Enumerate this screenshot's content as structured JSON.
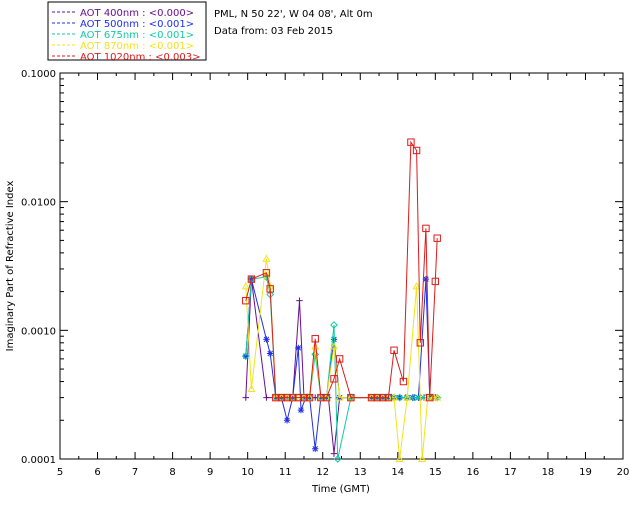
{
  "info": {
    "station": "PML, N 50 22', W 04 08', Alt 0m",
    "data_from": "Data from: 03 Feb 2015"
  },
  "chart_data": {
    "type": "line",
    "xlabel": "Time (GMT)",
    "ylabel": "Imaginary Part of Refractive Index",
    "xlim": [
      5,
      20
    ],
    "ylim": [
      0.0001,
      0.1
    ],
    "yscale": "log",
    "xticks": [
      5,
      6,
      7,
      8,
      9,
      10,
      11,
      12,
      13,
      14,
      15,
      16,
      17,
      18,
      19,
      20
    ],
    "yticks": [
      {
        "value": 0.0001,
        "label": "0.0001"
      },
      {
        "value": 0.001,
        "label": "0.0010"
      },
      {
        "value": 0.01,
        "label": "0.0100"
      },
      {
        "value": 0.1,
        "label": "0.1000"
      }
    ],
    "legend_position": "top-left",
    "series": [
      {
        "name": "AOT  400nm : <0.000>",
        "color": "#6a0f8e",
        "marker": "plus",
        "points": [
          [
            9.95,
            0.0003
          ],
          [
            10.1,
            0.0025
          ],
          [
            10.5,
            0.0003
          ],
          [
            10.75,
            0.0003
          ],
          [
            10.9,
            0.0003
          ],
          [
            11.05,
            0.0003
          ],
          [
            11.2,
            0.0003
          ],
          [
            11.38,
            0.0017
          ],
          [
            11.5,
            0.0003
          ],
          [
            11.65,
            0.0003
          ],
          [
            11.8,
            0.0003
          ],
          [
            12.0,
            0.0003
          ],
          [
            12.15,
            0.0003
          ],
          [
            12.3,
            0.00011
          ],
          [
            12.45,
            0.0003
          ],
          [
            12.75,
            0.0003
          ],
          [
            13.3,
            0.0003
          ],
          [
            13.45,
            0.0003
          ],
          [
            13.6,
            0.0003
          ],
          [
            13.75,
            0.0003
          ],
          [
            13.9,
            0.0003
          ],
          [
            14.05,
            0.0003
          ],
          [
            14.2,
            0.0003
          ],
          [
            14.4,
            0.0003
          ],
          [
            14.55,
            0.0003
          ],
          [
            14.7,
            0.0003
          ],
          [
            14.85,
            0.0003
          ],
          [
            15.0,
            0.0003
          ]
        ]
      },
      {
        "name": "AOT  500nm : <0.001>",
        "color": "#1f2fe6",
        "marker": "asterisk",
        "points": [
          [
            9.95,
            0.00063
          ],
          [
            10.1,
            0.0025
          ],
          [
            10.5,
            0.00085
          ],
          [
            10.6,
            0.00066
          ],
          [
            10.75,
            0.0003
          ],
          [
            10.9,
            0.0003
          ],
          [
            11.05,
            0.0002
          ],
          [
            11.2,
            0.0003
          ],
          [
            11.35,
            0.00073
          ],
          [
            11.42,
            0.00024
          ],
          [
            11.55,
            0.0003
          ],
          [
            11.65,
            0.0003
          ],
          [
            11.8,
            0.00012
          ],
          [
            11.95,
            0.0003
          ],
          [
            12.1,
            0.0003
          ],
          [
            12.3,
            0.00085
          ],
          [
            12.45,
            0.0003
          ],
          [
            12.75,
            0.0003
          ],
          [
            13.3,
            0.0003
          ],
          [
            13.45,
            0.0003
          ],
          [
            13.6,
            0.0003
          ],
          [
            13.75,
            0.0003
          ],
          [
            13.9,
            0.0003
          ],
          [
            14.05,
            0.0003
          ],
          [
            14.25,
            0.0003
          ],
          [
            14.4,
            0.0003
          ],
          [
            14.55,
            0.0003
          ],
          [
            14.75,
            0.0025
          ],
          [
            14.85,
            0.0003
          ],
          [
            15.0,
            0.0003
          ]
        ]
      },
      {
        "name": "AOT  675nm : <0.001>",
        "color": "#11c9a5",
        "marker": "diamond",
        "points": [
          [
            9.95,
            0.00063
          ],
          [
            10.1,
            0.0025
          ],
          [
            10.5,
            0.0026
          ],
          [
            10.6,
            0.0019
          ],
          [
            10.75,
            0.0003
          ],
          [
            10.9,
            0.0003
          ],
          [
            11.05,
            0.0003
          ],
          [
            11.2,
            0.0003
          ],
          [
            11.35,
            0.0003
          ],
          [
            11.5,
            0.0003
          ],
          [
            11.65,
            0.0003
          ],
          [
            11.8,
            0.00065
          ],
          [
            11.95,
            0.0003
          ],
          [
            12.1,
            0.0003
          ],
          [
            12.3,
            0.0011
          ],
          [
            12.4,
            0.0001
          ],
          [
            12.75,
            0.0003
          ],
          [
            13.3,
            0.0003
          ],
          [
            13.45,
            0.0003
          ],
          [
            13.6,
            0.0003
          ],
          [
            13.75,
            0.0003
          ],
          [
            13.9,
            0.0003
          ],
          [
            14.05,
            0.0003
          ],
          [
            14.25,
            0.0003
          ],
          [
            14.45,
            0.0003
          ],
          [
            14.6,
            0.0003
          ],
          [
            14.75,
            0.0003
          ],
          [
            14.9,
            0.0003
          ],
          [
            15.05,
            0.0003
          ]
        ]
      },
      {
        "name": "AOT  870nm : <0.001>",
        "color": "#f4e21a",
        "marker": "triangle",
        "points": [
          [
            9.95,
            0.0022
          ],
          [
            10.1,
            0.00035
          ],
          [
            10.5,
            0.0036
          ],
          [
            10.6,
            0.0022
          ],
          [
            10.75,
            0.0003
          ],
          [
            10.9,
            0.0003
          ],
          [
            11.05,
            0.0003
          ],
          [
            11.2,
            0.0003
          ],
          [
            11.35,
            0.0003
          ],
          [
            11.5,
            0.0003
          ],
          [
            11.65,
            0.0003
          ],
          [
            11.8,
            0.00075
          ],
          [
            11.95,
            0.0003
          ],
          [
            12.1,
            0.0003
          ],
          [
            12.3,
            0.00075
          ],
          [
            12.45,
            0.0003
          ],
          [
            12.75,
            0.0003
          ],
          [
            13.3,
            0.0003
          ],
          [
            13.45,
            0.0003
          ],
          [
            13.6,
            0.0003
          ],
          [
            13.75,
            0.0003
          ],
          [
            13.9,
            0.0003
          ],
          [
            14.05,
            0.0001
          ],
          [
            14.25,
            0.0003
          ],
          [
            14.5,
            0.0022
          ],
          [
            14.65,
            0.0001
          ],
          [
            14.8,
            0.0003
          ],
          [
            14.95,
            0.0003
          ],
          [
            15.05,
            0.0003
          ]
        ]
      },
      {
        "name": "AOT 1020nm : <0.003>",
        "color": "#dd1b1b",
        "marker": "square",
        "points": [
          [
            9.95,
            0.0017
          ],
          [
            10.1,
            0.0025
          ],
          [
            10.5,
            0.0028
          ],
          [
            10.6,
            0.0021
          ],
          [
            10.75,
            0.0003
          ],
          [
            10.9,
            0.0003
          ],
          [
            11.05,
            0.0003
          ],
          [
            11.2,
            0.0003
          ],
          [
            11.35,
            0.0003
          ],
          [
            11.5,
            0.0003
          ],
          [
            11.65,
            0.0003
          ],
          [
            11.8,
            0.00086
          ],
          [
            11.95,
            0.0003
          ],
          [
            12.1,
            0.0003
          ],
          [
            12.3,
            0.00042
          ],
          [
            12.45,
            0.0006
          ],
          [
            12.75,
            0.0003
          ],
          [
            13.3,
            0.0003
          ],
          [
            13.45,
            0.0003
          ],
          [
            13.6,
            0.0003
          ],
          [
            13.75,
            0.0003
          ],
          [
            13.9,
            0.0007
          ],
          [
            14.15,
            0.0004
          ],
          [
            14.35,
            0.029
          ],
          [
            14.5,
            0.025
          ],
          [
            14.6,
            0.0008
          ],
          [
            14.75,
            0.0062
          ],
          [
            14.85,
            0.0003
          ],
          [
            15.0,
            0.0024
          ],
          [
            15.05,
            0.0052
          ]
        ]
      }
    ]
  }
}
